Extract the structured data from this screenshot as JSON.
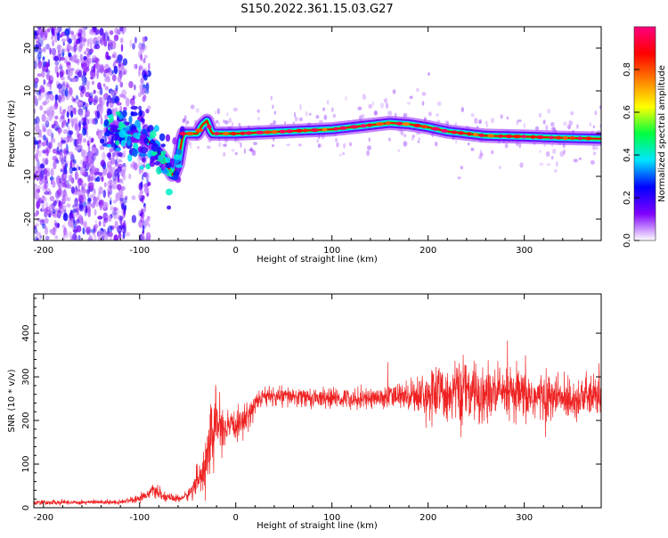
{
  "title": "S150.2022.361.15.03.G27",
  "chart_data": [
    {
      "type": "heatmap",
      "xlabel": "Height of straight line (km)",
      "ylabel": "Frequency (Hz)",
      "xlim": [
        -210,
        380
      ],
      "ylim": [
        -25,
        25
      ],
      "x_ticks": [
        -200,
        -100,
        0,
        100,
        200,
        300
      ],
      "y_ticks": [
        -20,
        -10,
        0,
        10,
        20
      ],
      "grid": false,
      "colorbar": {
        "label": "Normalized spectral amplitude",
        "range": [
          0,
          1
        ],
        "ticks": [
          0.0,
          0.2,
          0.4,
          0.6,
          0.8
        ],
        "colormap": [
          "#ffffff",
          "#8000ff",
          "#0000ff",
          "#00e5ff",
          "#00ff40",
          "#ffff00",
          "#ff8000",
          "#ff0000",
          "#ff0080"
        ]
      },
      "ridge": {
        "x": [
          -130,
          -110,
          -95,
          -85,
          -75,
          -65,
          -60,
          -55,
          -40,
          -35,
          -30,
          -25,
          -20,
          0,
          50,
          100,
          120,
          140,
          160,
          180,
          200,
          220,
          260,
          300,
          340,
          380
        ],
        "y": [
          1,
          0,
          -1,
          -3,
          -6,
          -10,
          -7,
          0,
          0,
          2,
          3,
          0,
          0,
          0,
          0.5,
          1,
          1.5,
          2,
          2.5,
          2.2,
          1.5,
          0.5,
          -0.5,
          -0.7,
          -1,
          -1.2
        ]
      },
      "scatter": {
        "x_range": [
          -210,
          -90
        ],
        "y_range": [
          -25,
          25
        ]
      }
    },
    {
      "type": "line",
      "xlabel": "Height of straight line (km)",
      "ylabel": "SNR (10 * v/v)",
      "xlim": [
        -210,
        380
      ],
      "ylim": [
        0,
        490
      ],
      "x_ticks": [
        -200,
        -100,
        0,
        100,
        200,
        300
      ],
      "y_ticks": [
        0,
        100,
        200,
        300,
        400
      ],
      "color": "#ee2222",
      "grid": false,
      "envelope": {
        "x": [
          -210,
          -120,
          -100,
          -85,
          -75,
          -60,
          -50,
          -40,
          -30,
          -25,
          -20,
          -15,
          -10,
          0,
          10,
          20,
          30,
          50,
          100,
          150,
          180,
          200,
          230,
          260,
          300,
          340,
          380
        ],
        "mean": [
          12,
          13,
          22,
          40,
          25,
          20,
          28,
          60,
          110,
          160,
          200,
          180,
          175,
          190,
          200,
          240,
          255,
          255,
          250,
          252,
          258,
          260,
          265,
          260,
          255,
          250,
          255
        ],
        "noise": [
          5,
          5,
          8,
          12,
          10,
          8,
          10,
          30,
          60,
          80,
          70,
          40,
          35,
          30,
          30,
          25,
          20,
          20,
          20,
          22,
          30,
          50,
          65,
          60,
          55,
          45,
          40
        ]
      }
    }
  ]
}
